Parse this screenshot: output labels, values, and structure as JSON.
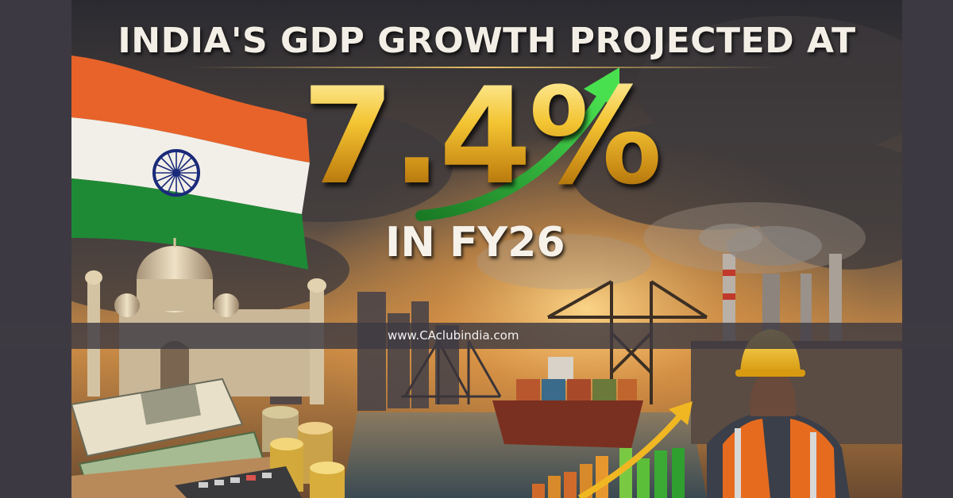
{
  "poster": {
    "headline": "INDIA'S GDP GROWTH PROJECTED AT",
    "figure": "7.4%",
    "subline": "IN FY26",
    "website": "www.CAclubindia.com"
  },
  "colors": {
    "saffron": "#e8632a",
    "white": "#f2efe8",
    "green": "#1f8a35",
    "chakra": "#1a2a7a",
    "gold": "#f3c432",
    "arrow_green": "#2fbf3a",
    "arrow_gold": "#f0b722",
    "sky_dark": "#2b2a2e",
    "sunset": "#e0a14a"
  },
  "icons": [
    "india-flag-icon",
    "growth-arrow-icon",
    "taj-mahal-icon",
    "cargo-ship-icon",
    "crane-icon",
    "factory-chimney-icon",
    "worker-hardhat-icon",
    "currency-notes-icon",
    "coin-stack-icon",
    "calculator-icon",
    "bar-growth-icon"
  ]
}
